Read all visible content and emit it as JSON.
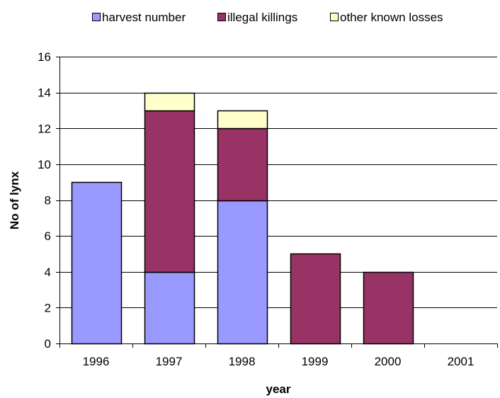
{
  "chart_data": {
    "type": "bar",
    "stacked": true,
    "categories": [
      "1996",
      "1997",
      "1998",
      "1999",
      "2000",
      "2001"
    ],
    "series": [
      {
        "name": "harvest number",
        "values": [
          9,
          4,
          8,
          0,
          0,
          0
        ],
        "color": "#9999ff"
      },
      {
        "name": "illegal killings",
        "values": [
          0,
          9,
          4,
          5,
          4,
          0
        ],
        "color": "#993366"
      },
      {
        "name": "other known losses",
        "values": [
          0,
          1,
          1,
          0,
          0,
          0
        ],
        "color": "#ffffcc"
      }
    ],
    "title": "",
    "xlabel": "year",
    "ylabel": "No of lynx",
    "ylim": [
      0,
      16
    ],
    "yticks": [
      "0",
      "2",
      "4",
      "6",
      "8",
      "10",
      "12",
      "14",
      "16"
    ],
    "grid": true,
    "legend_position": "top"
  }
}
